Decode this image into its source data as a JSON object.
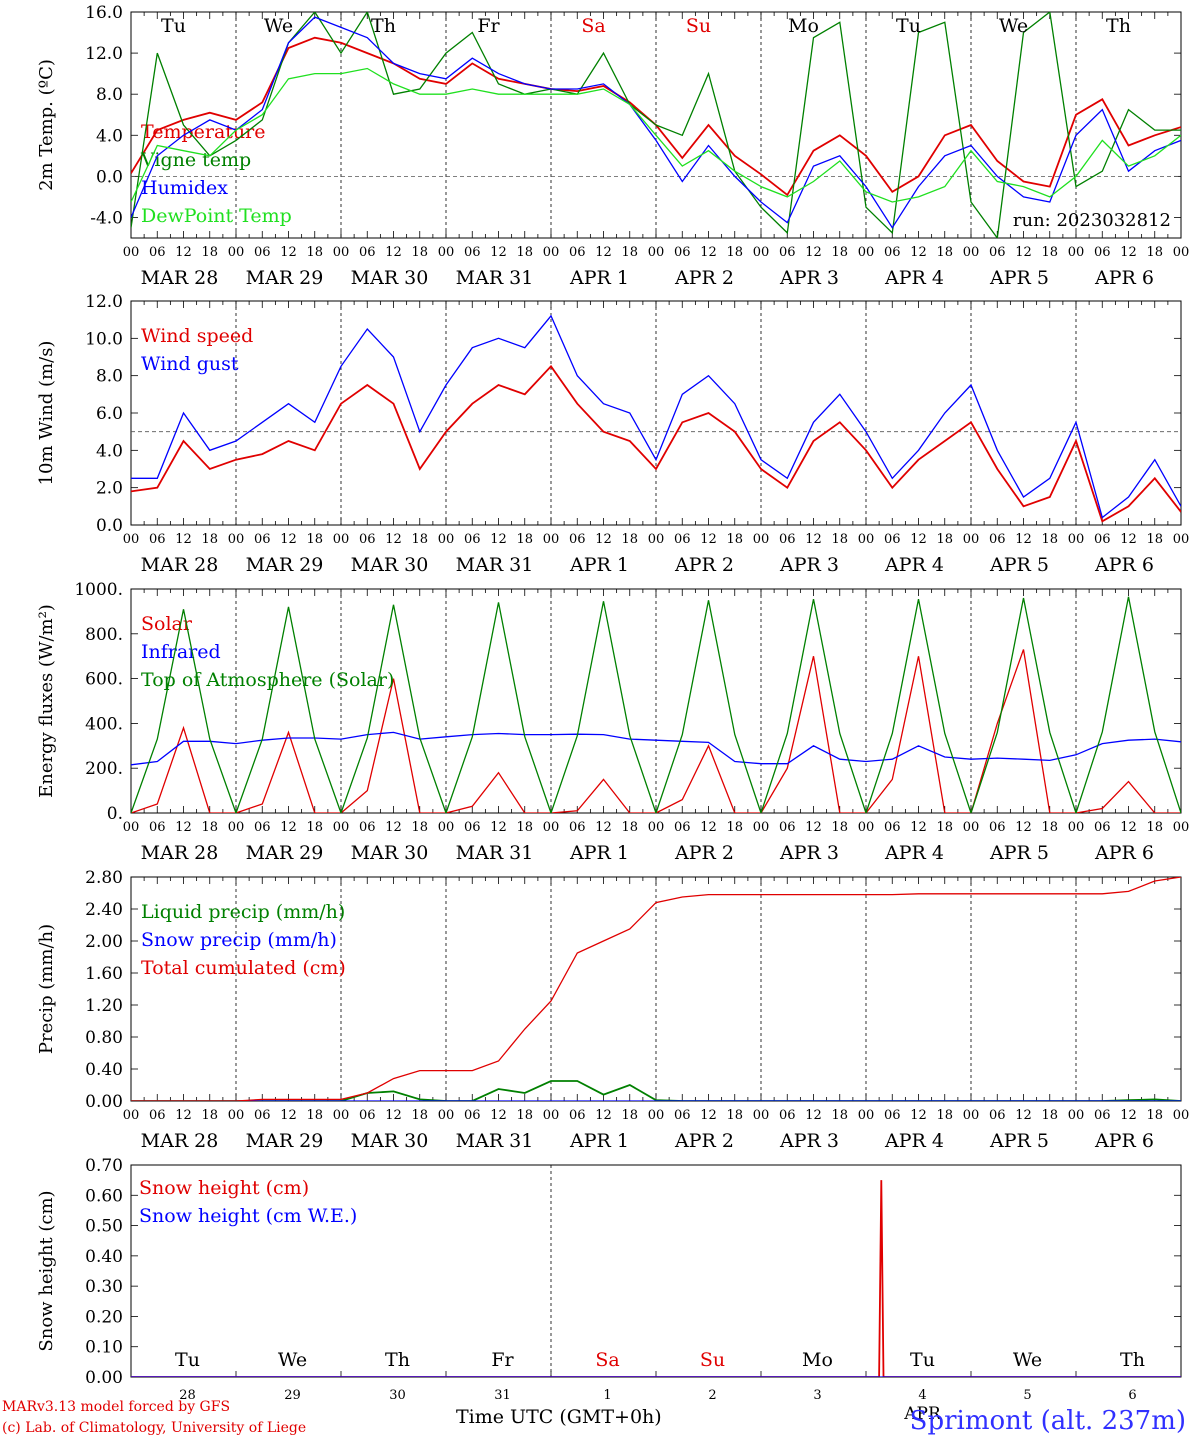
{
  "days": [
    "MAR 28",
    "MAR 29",
    "MAR 30",
    "MAR 31",
    "APR  1",
    "APR  2",
    "APR  3",
    "APR  4",
    "APR  5",
    "APR  6"
  ],
  "weekdays": [
    "Tu",
    "We",
    "Th",
    "Fr",
    "Sa",
    "Su",
    "Mo",
    "Tu",
    "We",
    "Th"
  ],
  "weekday_colors": [
    "#000000",
    "#000000",
    "#000000",
    "#000000",
    "#e00000",
    "#e00000",
    "#000000",
    "#000000",
    "#000000",
    "#000000"
  ],
  "hour_ticks": [
    "00",
    "06",
    "12",
    "18"
  ],
  "last_hour_tick": "00",
  "bottom_day_numbers": [
    "28",
    "29",
    "30",
    "31",
    "1",
    "2",
    "3",
    "4",
    "5",
    "6"
  ],
  "bottom_month_label": "APR",
  "colors": {
    "red": "#e00000",
    "green": "#008000",
    "blue": "#0000ff",
    "lightgreen": "#20e020"
  },
  "footer": {
    "model_line": "MARv3.13 model forced by GFS",
    "lab_line": "(c) Lab. of Climatology, University of Liege",
    "time_label": "Time UTC (GMT+0h)",
    "station": "Sprimont (alt. 237m)"
  },
  "chart_data": [
    {
      "type": "line",
      "ylabel": "2m Temp. (ºC)",
      "ylim": [
        -6,
        16
      ],
      "yticks": [
        "16.0",
        "12.0",
        "8.0",
        "4.0",
        "0.0",
        "-4.0"
      ],
      "ytick_values": [
        16,
        12,
        8,
        4,
        0,
        -4
      ],
      "hline": 0,
      "annotation": "run: 2023032812",
      "x": [
        0,
        6,
        12,
        18,
        24,
        30,
        36,
        42,
        48,
        54,
        60,
        66,
        72,
        78,
        84,
        90,
        96,
        102,
        108,
        114,
        120,
        126,
        132,
        138,
        144,
        150,
        156,
        162,
        168,
        174,
        180,
        186,
        192,
        198,
        204,
        210,
        216,
        222,
        228,
        234,
        240
      ],
      "series": [
        {
          "name": "Temperature",
          "color": "#e00000",
          "values": [
            0.3,
            4.5,
            5.5,
            6.2,
            5.5,
            7.2,
            12.5,
            13.5,
            13.0,
            12.0,
            11.0,
            9.5,
            9.0,
            11.0,
            9.5,
            9.0,
            8.5,
            8.3,
            8.8,
            7.2,
            5.0,
            1.8,
            5.0,
            2.0,
            0.2,
            -1.8,
            2.5,
            4.0,
            2.0,
            -1.5,
            0.0,
            4.0,
            5.0,
            1.5,
            -0.5,
            -1.0,
            6.0,
            7.5,
            3.0,
            4.0,
            4.8
          ]
        },
        {
          "name": "Vigne temp",
          "color": "#008000",
          "values": [
            -5.0,
            12.0,
            5.0,
            2.0,
            3.5,
            5.5,
            13.0,
            16.0,
            12.0,
            16.0,
            8.0,
            8.5,
            12.0,
            14.0,
            9.0,
            8.0,
            8.5,
            8.0,
            12.0,
            7.0,
            5.0,
            4.0,
            10.0,
            0.5,
            -3.0,
            -5.5,
            13.5,
            15.0,
            -3.0,
            -5.5,
            14.0,
            15.0,
            -2.5,
            -6.0,
            14.0,
            16.0,
            -1.0,
            0.5,
            6.5,
            4.5,
            4.5
          ]
        },
        {
          "name": "Humidex",
          "color": "#0000ff",
          "values": [
            -4.0,
            2.0,
            4.0,
            5.5,
            4.5,
            6.5,
            13.0,
            15.5,
            14.5,
            13.5,
            11.0,
            10.0,
            9.5,
            11.5,
            10.0,
            9.0,
            8.5,
            8.5,
            9.0,
            7.0,
            3.5,
            -0.5,
            3.0,
            0.0,
            -2.5,
            -4.5,
            1.0,
            2.0,
            -1.0,
            -5.0,
            -1.0,
            2.0,
            3.0,
            0.0,
            -2.0,
            -2.5,
            4.0,
            6.5,
            0.5,
            2.5,
            3.5
          ]
        },
        {
          "name": "DewPoint Temp",
          "color": "#20e020",
          "values": [
            -2.5,
            3.0,
            2.5,
            2.0,
            4.5,
            6.0,
            9.5,
            10.0,
            10.0,
            10.5,
            9.0,
            8.0,
            8.0,
            8.5,
            8.0,
            8.0,
            8.0,
            8.0,
            8.5,
            7.0,
            4.0,
            1.0,
            2.5,
            0.5,
            -1.0,
            -2.0,
            -0.5,
            1.5,
            -1.5,
            -2.5,
            -2.0,
            -1.0,
            2.5,
            -0.5,
            -1.0,
            -2.0,
            0.0,
            3.5,
            1.0,
            2.0,
            4.0
          ]
        }
      ]
    },
    {
      "type": "line",
      "ylabel": "10m Wind (m/s)",
      "ylim": [
        0,
        12
      ],
      "yticks": [
        "12.0",
        "10.0",
        "8.0",
        "6.0",
        "4.0",
        "2.0",
        "0.0"
      ],
      "ytick_values": [
        12,
        10,
        8,
        6,
        4,
        2,
        0
      ],
      "hline": 5,
      "x": [
        0,
        6,
        12,
        18,
        24,
        30,
        36,
        42,
        48,
        54,
        60,
        66,
        72,
        78,
        84,
        90,
        96,
        102,
        108,
        114,
        120,
        126,
        132,
        138,
        144,
        150,
        156,
        162,
        168,
        174,
        180,
        186,
        192,
        198,
        204,
        210,
        216,
        222,
        228,
        234,
        240
      ],
      "series": [
        {
          "name": "Wind speed",
          "color": "#e00000",
          "values": [
            1.8,
            2.0,
            4.5,
            3.0,
            3.5,
            3.8,
            4.5,
            4.0,
            6.5,
            7.5,
            6.5,
            3.0,
            5.0,
            6.5,
            7.5,
            7.0,
            8.5,
            6.5,
            5.0,
            4.5,
            3.0,
            5.5,
            6.0,
            5.0,
            3.0,
            2.0,
            4.5,
            5.5,
            4.0,
            2.0,
            3.5,
            4.5,
            5.5,
            3.0,
            1.0,
            1.5,
            4.5,
            0.2,
            1.0,
            2.5,
            0.7
          ]
        },
        {
          "name": "Wind gust",
          "color": "#0000ff",
          "values": [
            2.5,
            2.5,
            6.0,
            4.0,
            4.5,
            5.5,
            6.5,
            5.5,
            8.5,
            10.5,
            9.0,
            5.0,
            7.5,
            9.5,
            10.0,
            9.5,
            11.2,
            8.0,
            6.5,
            6.0,
            3.5,
            7.0,
            8.0,
            6.5,
            3.5,
            2.5,
            5.5,
            7.0,
            5.0,
            2.5,
            4.0,
            6.0,
            7.5,
            4.0,
            1.5,
            2.5,
            5.5,
            0.4,
            1.5,
            3.5,
            1.0
          ]
        }
      ]
    },
    {
      "type": "line",
      "ylabel": "Energy fluxes (W/m²)",
      "ylim": [
        0,
        1000
      ],
      "yticks": [
        "1000.",
        "800.",
        "600.",
        "400.",
        "200.",
        "0."
      ],
      "ytick_values": [
        1000,
        800,
        600,
        400,
        200,
        0
      ],
      "x": [
        0,
        6,
        12,
        18,
        24,
        30,
        36,
        42,
        48,
        54,
        60,
        66,
        72,
        78,
        84,
        90,
        96,
        102,
        108,
        114,
        120,
        126,
        132,
        138,
        144,
        150,
        156,
        162,
        168,
        174,
        180,
        186,
        192,
        198,
        204,
        210,
        216,
        222,
        228,
        234,
        240
      ],
      "series": [
        {
          "name": "Solar",
          "color": "#e00000",
          "values": [
            0,
            40,
            380,
            0,
            0,
            40,
            360,
            0,
            0,
            100,
            600,
            0,
            0,
            30,
            180,
            0,
            0,
            10,
            150,
            0,
            0,
            60,
            300,
            0,
            0,
            200,
            700,
            0,
            0,
            150,
            700,
            0,
            0,
            400,
            730,
            0,
            0,
            20,
            140,
            0,
            0
          ]
        },
        {
          "name": "Infrared",
          "color": "#0000ff",
          "values": [
            215,
            230,
            320,
            320,
            310,
            325,
            335,
            335,
            330,
            350,
            360,
            330,
            340,
            350,
            355,
            350,
            350,
            352,
            350,
            330,
            325,
            320,
            315,
            230,
            220,
            220,
            300,
            240,
            230,
            240,
            300,
            250,
            240,
            245,
            240,
            235,
            260,
            310,
            325,
            330,
            318
          ]
        },
        {
          "name": "Top of Atmosphere (Solar)",
          "color": "#008000",
          "values": [
            0,
            330,
            910,
            330,
            0,
            330,
            920,
            330,
            0,
            335,
            930,
            335,
            0,
            340,
            940,
            340,
            0,
            345,
            945,
            345,
            0,
            350,
            950,
            350,
            0,
            355,
            955,
            355,
            0,
            355,
            955,
            355,
            0,
            360,
            960,
            360,
            0,
            362,
            965,
            362,
            0
          ]
        }
      ]
    },
    {
      "type": "line",
      "ylabel": "Precip (mm/h)",
      "ylim": [
        0,
        2.8
      ],
      "yticks": [
        "2.80",
        "2.40",
        "2.00",
        "1.60",
        "1.20",
        "0.80",
        "0.40",
        "0.00"
      ],
      "ytick_values": [
        2.8,
        2.4,
        2.0,
        1.6,
        1.2,
        0.8,
        0.4,
        0.0
      ],
      "x": [
        0,
        6,
        12,
        18,
        24,
        30,
        36,
        42,
        48,
        54,
        60,
        66,
        72,
        78,
        84,
        90,
        96,
        102,
        108,
        114,
        120,
        126,
        132,
        138,
        144,
        150,
        156,
        162,
        168,
        174,
        180,
        186,
        192,
        198,
        204,
        210,
        216,
        222,
        228,
        234,
        240
      ],
      "series": [
        {
          "name": "Liquid precip (mm/h)",
          "color": "#008000",
          "values": [
            0,
            0,
            0,
            0,
            0,
            0,
            0,
            0,
            0,
            0.1,
            0.12,
            0.02,
            0,
            0,
            0.15,
            0.1,
            0.25,
            0.25,
            0.08,
            0.2,
            0.01,
            0,
            0,
            0,
            0,
            0,
            0,
            0,
            0,
            0,
            0,
            0,
            0,
            0,
            0,
            0,
            0,
            0,
            0.01,
            0.02,
            0
          ]
        },
        {
          "name": "Snow precip (mm/h)",
          "color": "#0000ff",
          "values": [
            0,
            0,
            0,
            0,
            0,
            0,
            0,
            0,
            0,
            0,
            0,
            0,
            0,
            0,
            0,
            0,
            0,
            0,
            0,
            0,
            0,
            0,
            0,
            0,
            0,
            0,
            0,
            0,
            0,
            0,
            0,
            0,
            0,
            0,
            0,
            0,
            0,
            0,
            0,
            0,
            0
          ]
        },
        {
          "name": "Total cumulated (cm)",
          "color": "#e00000",
          "values": [
            0,
            0,
            0,
            0,
            0,
            0.02,
            0.02,
            0.02,
            0.02,
            0.1,
            0.28,
            0.38,
            0.38,
            0.38,
            0.5,
            0.9,
            1.25,
            1.85,
            2.0,
            2.15,
            2.48,
            2.55,
            2.58,
            2.58,
            2.58,
            2.58,
            2.58,
            2.58,
            2.58,
            2.58,
            2.59,
            2.59,
            2.59,
            2.59,
            2.59,
            2.59,
            2.59,
            2.59,
            2.62,
            2.75,
            2.8
          ]
        }
      ]
    },
    {
      "type": "line",
      "ylabel": "Snow height (cm)",
      "ylim": [
        0,
        0.7
      ],
      "yticks": [
        "0.70",
        "0.60",
        "0.50",
        "0.40",
        "0.30",
        "0.20",
        "0.10",
        "0.00"
      ],
      "ytick_values": [
        0.7,
        0.6,
        0.5,
        0.4,
        0.3,
        0.2,
        0.1,
        0.0
      ],
      "x": [
        0,
        170,
        171,
        171.5,
        172,
        173,
        240
      ],
      "series": [
        {
          "name": "Snow height (cm)",
          "color": "#e00000",
          "values": [
            0,
            0,
            0,
            0.65,
            0,
            0,
            0
          ]
        },
        {
          "name": "Snow height (cm W.E.)",
          "color": "#0000ff",
          "values": [
            0,
            0,
            0,
            0,
            0,
            0,
            0
          ]
        }
      ]
    }
  ]
}
